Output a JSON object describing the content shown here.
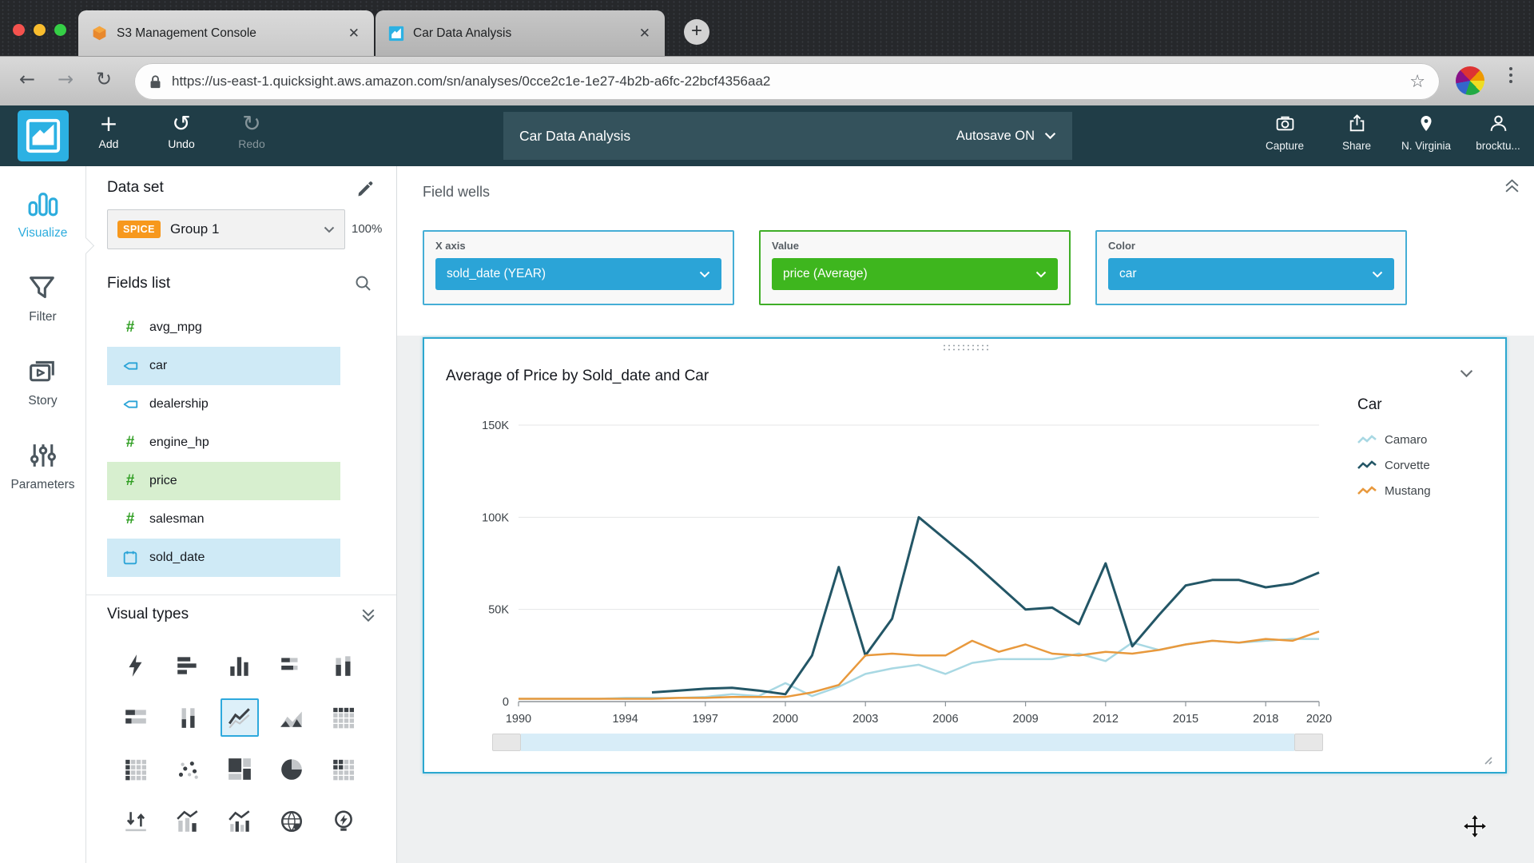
{
  "browser": {
    "tabs": [
      {
        "title": "S3 Management Console",
        "icon": "s3-cube-icon",
        "close": "✕"
      },
      {
        "title": "Car Data Analysis",
        "icon": "quicksight-icon",
        "close": "✕"
      }
    ],
    "new_tab_label": "+",
    "back_glyph": "←",
    "forward_glyph": "→",
    "reload_glyph": "↻",
    "url": "https://us-east-1.quicksight.aws.amazon.com/sn/analyses/0cce2c1e-1e27-4b2b-a6fc-22bcf4356aa2",
    "bookmark_glyph": "☆"
  },
  "toolbar": {
    "add_label": "Add",
    "add_glyph": "+",
    "undo_label": "Undo",
    "undo_glyph": "↺",
    "redo_label": "Redo",
    "redo_glyph": "↻",
    "analysis_title": "Car Data Analysis",
    "autosave_label": "Autosave ON",
    "capture_label": "Capture",
    "share_label": "Share",
    "region_label": "N. Virginia",
    "user_label": "brocktu..."
  },
  "left_nav": {
    "items": [
      {
        "label": "Visualize",
        "icon": "visualize-icon",
        "active": true
      },
      {
        "label": "Filter",
        "icon": "filter-icon",
        "active": false
      },
      {
        "label": "Story",
        "icon": "story-icon",
        "active": false
      },
      {
        "label": "Parameters",
        "icon": "parameters-icon",
        "active": false
      }
    ]
  },
  "dataset_panel": {
    "header": "Data set",
    "spice_badge": "SPICE",
    "dataset_name": "Group 1",
    "ingest_percent": "100%",
    "fields_header": "Fields list",
    "fields": [
      {
        "name": "avg_mpg",
        "type": "numeric",
        "highlight": null
      },
      {
        "name": "car",
        "type": "string",
        "highlight": "blue"
      },
      {
        "name": "dealership",
        "type": "string",
        "highlight": null
      },
      {
        "name": "engine_hp",
        "type": "numeric",
        "highlight": null
      },
      {
        "name": "price",
        "type": "numeric",
        "highlight": "green"
      },
      {
        "name": "salesman",
        "type": "numeric",
        "highlight": null
      },
      {
        "name": "sold_date",
        "type": "date",
        "highlight": "blue"
      }
    ],
    "visual_types_header": "Visual types",
    "visual_types": [
      {
        "name": "auto-graph",
        "selected": false
      },
      {
        "name": "horizontal-bar",
        "selected": false
      },
      {
        "name": "vertical-bar",
        "selected": false
      },
      {
        "name": "stacked-horizontal-bar",
        "selected": false
      },
      {
        "name": "stacked-vertical-bar",
        "selected": false
      },
      {
        "name": "stacked-100-horizontal-bar",
        "selected": false
      },
      {
        "name": "box-columns",
        "selected": false
      },
      {
        "name": "line-chart",
        "selected": true
      },
      {
        "name": "area-chart",
        "selected": false
      },
      {
        "name": "table",
        "selected": false
      },
      {
        "name": "heat-map",
        "selected": false
      },
      {
        "name": "scatter-plot",
        "selected": false
      },
      {
        "name": "tree-map",
        "selected": false
      },
      {
        "name": "pie-chart",
        "selected": false
      },
      {
        "name": "pivot-table",
        "selected": false
      },
      {
        "name": "waterfall",
        "selected": false
      },
      {
        "name": "combo-bar-line",
        "selected": false
      },
      {
        "name": "combo-stacked-line",
        "selected": false
      },
      {
        "name": "geospatial-map",
        "selected": false
      },
      {
        "name": "insights",
        "selected": false
      }
    ]
  },
  "field_wells": {
    "header": "Field wells",
    "wells": [
      {
        "label": "X axis",
        "value": "sold_date (YEAR)",
        "color": "blue"
      },
      {
        "label": "Value",
        "value": "price (Average)",
        "color": "green"
      },
      {
        "label": "Color",
        "value": "car",
        "color": "blue"
      }
    ]
  },
  "chart_data": {
    "type": "line",
    "title": "Average of Price by Sold_date and Car",
    "legend_title": "Car",
    "x": [
      1990,
      1991,
      1992,
      1993,
      1994,
      1995,
      1996,
      1997,
      1998,
      1999,
      2000,
      2001,
      2002,
      2003,
      2004,
      2005,
      2006,
      2007,
      2008,
      2009,
      2010,
      2011,
      2012,
      2013,
      2014,
      2015,
      2016,
      2017,
      2018,
      2019,
      2020
    ],
    "x_tick_labels": [
      "1990",
      "1994",
      "1997",
      "2000",
      "2003",
      "2006",
      "2009",
      "2012",
      "2015",
      "2018",
      "2020"
    ],
    "y_ticks": [
      {
        "v": 0,
        "label": "0"
      },
      {
        "v": 50,
        "label": "50K"
      },
      {
        "v": 100,
        "label": "100K"
      },
      {
        "v": 150,
        "label": "150K"
      }
    ],
    "ylim": [
      0,
      150
    ],
    "value_unit": "thousand dollars",
    "grid": true,
    "legend_position": "right",
    "series": [
      {
        "name": "Camaro",
        "color": "#a8d8e3",
        "values": [
          1.5,
          1.5,
          1.5,
          1.5,
          2,
          2,
          2,
          2.5,
          4,
          3,
          10,
          3,
          8,
          15,
          18,
          20,
          15,
          21,
          23,
          23,
          23,
          26,
          22,
          32,
          28,
          31,
          33,
          32,
          33,
          34,
          34
        ]
      },
      {
        "name": "Corvette",
        "color": "#235666",
        "values": [
          null,
          null,
          null,
          null,
          null,
          5,
          6,
          7,
          7.5,
          6,
          4,
          25,
          73,
          25,
          45,
          100,
          88,
          76,
          63,
          50,
          51,
          42,
          75,
          30,
          47,
          63,
          66,
          66,
          62,
          64,
          70
        ]
      },
      {
        "name": "Mustang",
        "color": "#e8993d",
        "values": [
          1.5,
          1.5,
          1.5,
          1.5,
          1.5,
          1.5,
          2,
          2,
          2.5,
          2.5,
          2.5,
          5,
          9,
          25,
          26,
          25,
          25,
          33,
          27,
          31,
          26,
          25,
          27,
          26,
          28,
          31,
          33,
          32,
          34,
          33,
          38
        ]
      }
    ]
  },
  "colors": {
    "accent_blue": "#2ba4d7",
    "accent_green": "#3eb61e",
    "spice_orange": "#f7981d",
    "toolbar_teal": "#203d47",
    "icon_dark": "#3c4146",
    "icon_light": "#c3c6c9"
  }
}
